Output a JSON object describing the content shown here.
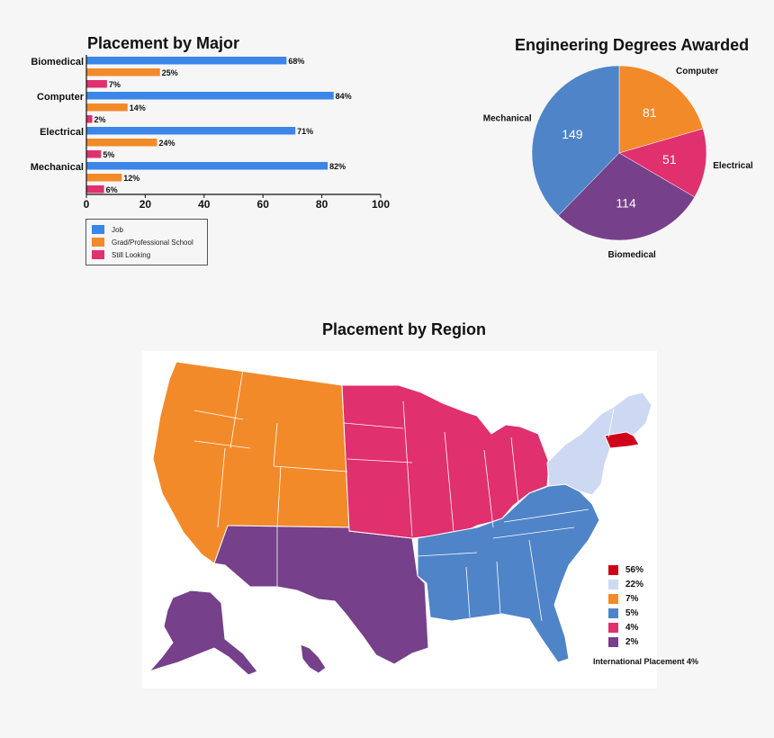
{
  "chart_data": [
    {
      "type": "bar",
      "orientation": "horizontal",
      "title": "Placement by Major",
      "categories": [
        "Biomedical",
        "Computer",
        "Electrical",
        "Mechanical"
      ],
      "series": [
        {
          "name": "Job",
          "values": [
            68,
            84,
            71,
            82
          ],
          "labels": [
            "68%",
            "84%",
            "71%",
            "82%"
          ],
          "color": "#3b86e8"
        },
        {
          "name": "Grad/Professional School",
          "values": [
            25,
            14,
            24,
            12
          ],
          "labels": [
            "25%",
            "14%",
            "24%",
            "12%"
          ],
          "color": "#f28a2a"
        },
        {
          "name": "Still Looking",
          "values": [
            7,
            2,
            5,
            6
          ],
          "labels": [
            "7%",
            "2%",
            "5%",
            "6%"
          ],
          "color": "#e0306e"
        }
      ],
      "xlim": [
        0,
        100
      ],
      "xticks": [
        "0",
        "20",
        "40",
        "60",
        "80",
        "100"
      ],
      "legend_position": "bottom-left"
    },
    {
      "type": "pie",
      "title": "Engineering Degrees Awarded",
      "slices": [
        {
          "label": "Computer",
          "value": 81,
          "value_label": "81",
          "color": "#f28a2a"
        },
        {
          "label": "Electrical",
          "value": 51,
          "value_label": "51",
          "color": "#e0306e"
        },
        {
          "label": "Biomedical",
          "value": 114,
          "value_label": "114",
          "color": "#76408a"
        },
        {
          "label": "Mechanical",
          "value": 149,
          "value_label": "149",
          "color": "#4f84c8"
        }
      ]
    },
    {
      "type": "choropleth",
      "title": "Placement by Region",
      "regions": [
        {
          "region": "Massachusetts",
          "value_label": "56%",
          "color": "#d0021b"
        },
        {
          "region": "Northeast",
          "value_label": "22%",
          "color": "#cdd9f3"
        },
        {
          "region": "West",
          "value_label": "7%",
          "color": "#f28a2a"
        },
        {
          "region": "Southeast",
          "value_label": "5%",
          "color": "#4f84c8"
        },
        {
          "region": "Midwest",
          "value_label": "4%",
          "color": "#e0306e"
        },
        {
          "region": "Southwest",
          "value_label": "2%",
          "color": "#76408a"
        }
      ],
      "legend_position": "bottom-right",
      "note": "International Placement 4%"
    }
  ]
}
